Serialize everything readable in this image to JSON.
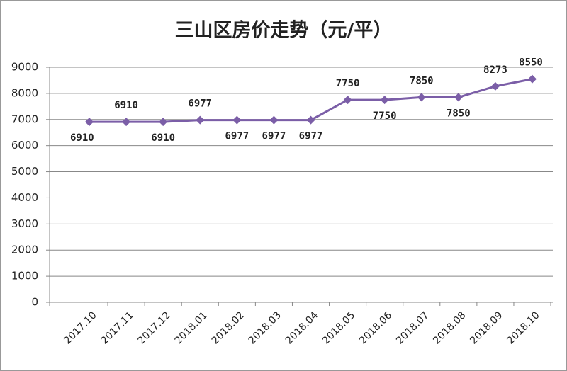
{
  "chart_data": {
    "type": "line",
    "title": "三山区房价走势（元/平）",
    "categories": [
      "2017.10",
      "2017.11",
      "2017.12",
      "2018.01",
      "2018.02",
      "2018.03",
      "2018.04",
      "2018.05",
      "2018.06",
      "2018.07",
      "2018.08",
      "2018.09",
      "2018.10"
    ],
    "series": [
      {
        "color": "#7b5ea7",
        "values": [
          6910,
          6910,
          6910,
          6977,
          6977,
          6977,
          6977,
          7750,
          7750,
          7850,
          7850,
          8273,
          8550
        ]
      }
    ],
    "ylim": [
      0,
      9000
    ],
    "yticks": [
      0,
      1000,
      2000,
      3000,
      4000,
      5000,
      6000,
      7000,
      8000,
      9000
    ],
    "grid": true
  }
}
